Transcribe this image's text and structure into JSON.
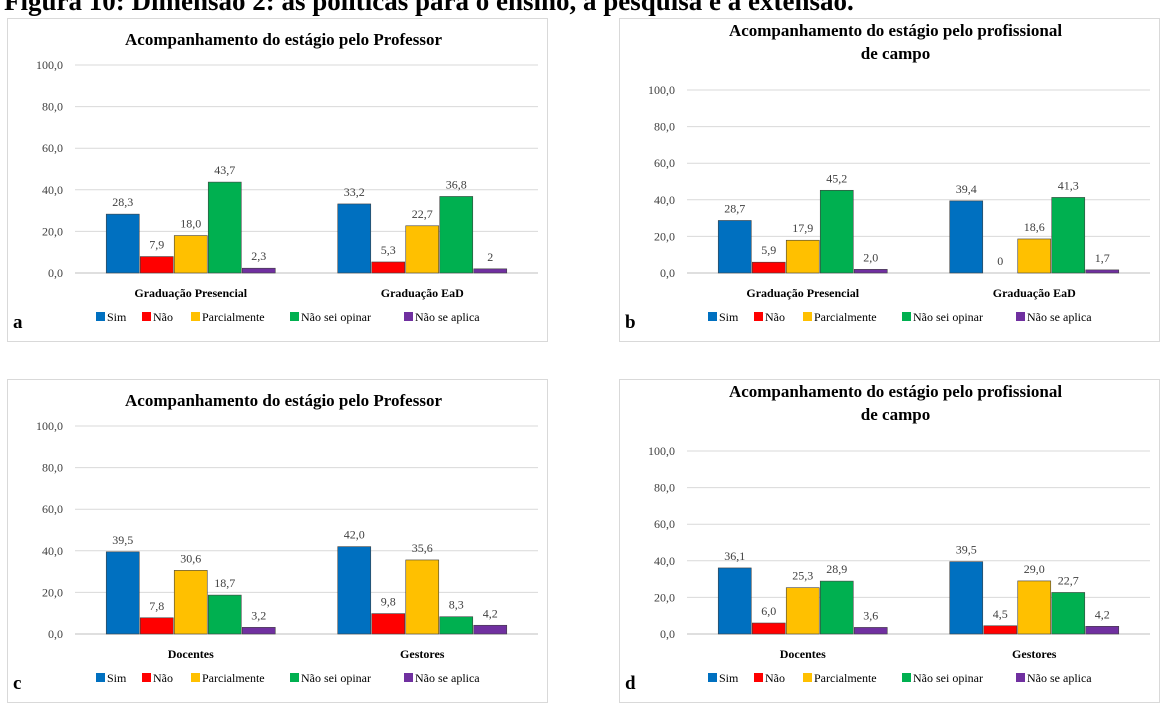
{
  "page": {
    "caption": "Figura 10: Dimensão 2: as políticas para o ensino, a pesquisa e a extensão."
  },
  "legend": {
    "entries": [
      {
        "name": "Sim",
        "color": "#0070C0"
      },
      {
        "name": "Não",
        "color": "#FF0000"
      },
      {
        "name": "Parcialmente",
        "color": "#FFC000"
      },
      {
        "name": "Não sei opinar",
        "color": "#00B050"
      },
      {
        "name": "Não se aplica",
        "color": "#7030A0"
      }
    ]
  },
  "chart_data": [
    {
      "panel": "a",
      "type": "bar",
      "title": [
        "Acompanhamento do estágio pelo Professor"
      ],
      "categories": [
        "Graduação Presencial",
        "Graduação EaD"
      ],
      "ylim": [
        0,
        100
      ],
      "yticks": [
        "0,0",
        "20,0",
        "40,0",
        "60,0",
        "80,0",
        "100,0"
      ],
      "grid": true,
      "legend_position": "bottom",
      "series": [
        {
          "name": "Sim",
          "values": [
            28.3,
            33.2
          ],
          "labels": [
            "28,3",
            "33,2"
          ]
        },
        {
          "name": "Não",
          "values": [
            7.9,
            5.3
          ],
          "labels": [
            "7,9",
            "5,3"
          ]
        },
        {
          "name": "Parcialmente",
          "values": [
            18.0,
            22.7
          ],
          "labels": [
            "18,0",
            "22,7"
          ]
        },
        {
          "name": "Não sei opinar",
          "values": [
            43.7,
            36.8
          ],
          "labels": [
            "43,7",
            "36,8"
          ]
        },
        {
          "name": "Não se aplica",
          "values": [
            2.3,
            2
          ],
          "labels": [
            "2,3",
            "2"
          ]
        }
      ]
    },
    {
      "panel": "b",
      "type": "bar",
      "title": [
        "Acompanhamento do estágio pelo profissional",
        "de campo"
      ],
      "categories": [
        "Graduação Presencial",
        "Graduação EaD"
      ],
      "ylim": [
        0,
        100
      ],
      "yticks": [
        "0,0",
        "20,0",
        "40,0",
        "60,0",
        "80,0",
        "100,0"
      ],
      "grid": true,
      "legend_position": "bottom",
      "series": [
        {
          "name": "Sim",
          "values": [
            28.7,
            39.4
          ],
          "labels": [
            "28,7",
            "39,4"
          ]
        },
        {
          "name": "Não",
          "values": [
            5.9,
            0
          ],
          "labels": [
            "5,9",
            "0"
          ]
        },
        {
          "name": "Parcialmente",
          "values": [
            17.9,
            18.6
          ],
          "labels": [
            "17,9",
            "18,6"
          ]
        },
        {
          "name": "Não sei opinar",
          "values": [
            45.2,
            41.3
          ],
          "labels": [
            "45,2",
            "41,3"
          ]
        },
        {
          "name": "Não se aplica",
          "values": [
            2.0,
            1.7
          ],
          "labels": [
            "2,0",
            "1,7"
          ]
        }
      ]
    },
    {
      "panel": "c",
      "type": "bar",
      "title": [
        "Acompanhamento do estágio pelo Professor"
      ],
      "categories": [
        "Docentes",
        "Gestores"
      ],
      "ylim": [
        0,
        100
      ],
      "yticks": [
        "0,0",
        "20,0",
        "40,0",
        "60,0",
        "80,0",
        "100,0"
      ],
      "grid": true,
      "legend_position": "bottom",
      "series": [
        {
          "name": "Sim",
          "values": [
            39.5,
            42.0
          ],
          "labels": [
            "39,5",
            "42,0"
          ]
        },
        {
          "name": "Não",
          "values": [
            7.8,
            9.8
          ],
          "labels": [
            "7,8",
            "9,8"
          ]
        },
        {
          "name": "Parcialmente",
          "values": [
            30.6,
            35.6
          ],
          "labels": [
            "30,6",
            "35,6"
          ]
        },
        {
          "name": "Não sei opinar",
          "values": [
            18.7,
            8.3
          ],
          "labels": [
            "18,7",
            "8,3"
          ]
        },
        {
          "name": "Não se aplica",
          "values": [
            3.2,
            4.2
          ],
          "labels": [
            "3,2",
            "4,2"
          ]
        }
      ]
    },
    {
      "panel": "d",
      "type": "bar",
      "title": [
        "Acompanhamento do estágio pelo profissional",
        "de campo"
      ],
      "categories": [
        "Docentes",
        "Gestores"
      ],
      "ylim": [
        0,
        100
      ],
      "yticks": [
        "0,0",
        "20,0",
        "40,0",
        "60,0",
        "80,0",
        "100,0"
      ],
      "grid": true,
      "legend_position": "bottom",
      "series": [
        {
          "name": "Sim",
          "values": [
            36.1,
            39.5
          ],
          "labels": [
            "36,1",
            "39,5"
          ]
        },
        {
          "name": "Não",
          "values": [
            6.0,
            4.5
          ],
          "labels": [
            "6,0",
            "4,5"
          ]
        },
        {
          "name": "Parcialmente",
          "values": [
            25.3,
            29.0
          ],
          "labels": [
            "25,3",
            "29,0"
          ]
        },
        {
          "name": "Não sei opinar",
          "values": [
            28.9,
            22.7
          ],
          "labels": [
            "28,9",
            "22,7"
          ]
        },
        {
          "name": "Não se aplica",
          "values": [
            3.6,
            4.2
          ],
          "labels": [
            "3,6",
            "4,2"
          ]
        }
      ]
    }
  ]
}
